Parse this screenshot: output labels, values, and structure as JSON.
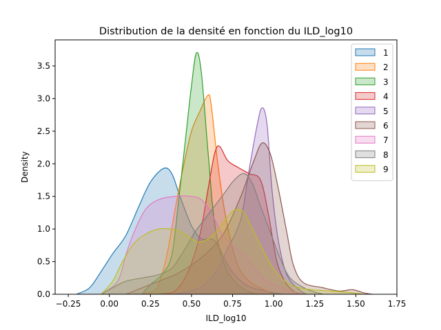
{
  "chart_data": {
    "type": "area",
    "title": "Distribution de la densité en fonction du ILD_log10",
    "xlabel": "ILD_log10",
    "ylabel": "Density",
    "xlim": [
      -0.33,
      1.75
    ],
    "ylim": [
      0,
      3.9
    ],
    "xticks": [
      "−0.25",
      "0.00",
      "0.25",
      "0.50",
      "0.75",
      "1.00",
      "1.25",
      "1.50",
      "1.75"
    ],
    "xtick_values": [
      -0.25,
      0,
      0.25,
      0.5,
      0.75,
      1.0,
      1.25,
      1.5,
      1.75
    ],
    "yticks": [
      "0.0",
      "0.5",
      "1.0",
      "1.5",
      "2.0",
      "2.5",
      "3.0",
      "3.5"
    ],
    "ytick_values": [
      0,
      0.5,
      1.0,
      1.5,
      2.0,
      2.5,
      3.0,
      3.5
    ],
    "legend_position": "top-right",
    "series": [
      {
        "name": "1",
        "color": "#1f77b4",
        "points": [
          [
            -0.2,
            0
          ],
          [
            -0.12,
            0.1
          ],
          [
            -0.05,
            0.35
          ],
          [
            0.02,
            0.62
          ],
          [
            0.1,
            0.9
          ],
          [
            0.18,
            1.35
          ],
          [
            0.25,
            1.72
          ],
          [
            0.33,
            1.93
          ],
          [
            0.38,
            1.85
          ],
          [
            0.43,
            1.5
          ],
          [
            0.5,
            1.05
          ],
          [
            0.56,
            0.85
          ],
          [
            0.62,
            0.85
          ],
          [
            0.66,
            0.75
          ],
          [
            0.72,
            0.45
          ],
          [
            0.78,
            0.25
          ],
          [
            0.85,
            0.12
          ],
          [
            0.95,
            0.05
          ],
          [
            1.05,
            0
          ]
        ]
      },
      {
        "name": "2",
        "color": "#ff7f0e",
        "points": [
          [
            0.2,
            0
          ],
          [
            0.27,
            0.05
          ],
          [
            0.3,
            0.15
          ],
          [
            0.35,
            0.6
          ],
          [
            0.4,
            1.3
          ],
          [
            0.45,
            1.95
          ],
          [
            0.5,
            2.5
          ],
          [
            0.55,
            2.8
          ],
          [
            0.6,
            3.05
          ],
          [
            0.62,
            2.9
          ],
          [
            0.66,
            2.0
          ],
          [
            0.7,
            1.3
          ],
          [
            0.75,
            0.7
          ],
          [
            0.8,
            0.35
          ],
          [
            0.88,
            0.15
          ],
          [
            1.0,
            0
          ]
        ]
      },
      {
        "name": "3",
        "color": "#2ca02c",
        "points": [
          [
            0.2,
            0
          ],
          [
            0.25,
            0.15
          ],
          [
            0.32,
            0.3
          ],
          [
            0.38,
            0.6
          ],
          [
            0.42,
            1.4
          ],
          [
            0.46,
            2.3
          ],
          [
            0.5,
            3.2
          ],
          [
            0.53,
            3.7
          ],
          [
            0.56,
            3.4
          ],
          [
            0.6,
            2.2
          ],
          [
            0.64,
            1.1
          ],
          [
            0.7,
            0.45
          ],
          [
            0.78,
            0.15
          ],
          [
            0.85,
            0.04
          ],
          [
            0.9,
            0
          ]
        ]
      },
      {
        "name": "4",
        "color": "#d62728",
        "points": [
          [
            0.3,
            0
          ],
          [
            0.4,
            0.05
          ],
          [
            0.48,
            0.35
          ],
          [
            0.55,
            0.9
          ],
          [
            0.6,
            1.6
          ],
          [
            0.64,
            2.15
          ],
          [
            0.67,
            2.27
          ],
          [
            0.72,
            2.05
          ],
          [
            0.78,
            1.95
          ],
          [
            0.85,
            1.85
          ],
          [
            0.92,
            1.75
          ],
          [
            0.97,
            1.2
          ],
          [
            1.02,
            0.5
          ],
          [
            1.08,
            0.15
          ],
          [
            1.15,
            0
          ]
        ]
      },
      {
        "name": "5",
        "color": "#9467bd",
        "points": [
          [
            0.4,
            0
          ],
          [
            0.55,
            0.1
          ],
          [
            0.65,
            0.35
          ],
          [
            0.72,
            0.7
          ],
          [
            0.8,
            1.15
          ],
          [
            0.85,
            1.9
          ],
          [
            0.9,
            2.6
          ],
          [
            0.93,
            2.86
          ],
          [
            0.96,
            2.6
          ],
          [
            0.99,
            1.6
          ],
          [
            1.03,
            0.8
          ],
          [
            1.08,
            0.3
          ],
          [
            1.15,
            0.08
          ],
          [
            1.2,
            0
          ]
        ]
      },
      {
        "name": "6",
        "color": "#8c564b",
        "points": [
          [
            0.1,
            0
          ],
          [
            0.2,
            0.1
          ],
          [
            0.3,
            0.2
          ],
          [
            0.4,
            0.3
          ],
          [
            0.5,
            0.45
          ],
          [
            0.6,
            0.65
          ],
          [
            0.7,
            0.95
          ],
          [
            0.8,
            1.5
          ],
          [
            0.88,
            2.05
          ],
          [
            0.93,
            2.32
          ],
          [
            0.98,
            2.15
          ],
          [
            1.03,
            1.6
          ],
          [
            1.08,
            0.95
          ],
          [
            1.12,
            0.45
          ],
          [
            1.18,
            0.18
          ],
          [
            1.3,
            0.1
          ],
          [
            1.4,
            0.05
          ],
          [
            1.48,
            0.07
          ],
          [
            1.55,
            0.02
          ],
          [
            1.6,
            0
          ]
        ]
      },
      {
        "name": "7",
        "color": "#e377c2",
        "points": [
          [
            -0.05,
            0
          ],
          [
            0.05,
            0.2
          ],
          [
            0.1,
            0.6
          ],
          [
            0.15,
            0.95
          ],
          [
            0.22,
            1.3
          ],
          [
            0.3,
            1.45
          ],
          [
            0.4,
            1.5
          ],
          [
            0.5,
            1.5
          ],
          [
            0.56,
            1.45
          ],
          [
            0.62,
            1.25
          ],
          [
            0.68,
            0.95
          ],
          [
            0.75,
            0.75
          ],
          [
            0.82,
            0.6
          ],
          [
            0.88,
            0.42
          ],
          [
            0.95,
            0.22
          ],
          [
            1.05,
            0.1
          ],
          [
            1.15,
            0.02
          ],
          [
            1.2,
            0
          ]
        ]
      },
      {
        "name": "8",
        "color": "#7f7f7f",
        "points": [
          [
            -0.05,
            0
          ],
          [
            0.02,
            0.1
          ],
          [
            0.1,
            0.2
          ],
          [
            0.2,
            0.25
          ],
          [
            0.3,
            0.3
          ],
          [
            0.38,
            0.4
          ],
          [
            0.45,
            0.65
          ],
          [
            0.52,
            0.95
          ],
          [
            0.58,
            1.15
          ],
          [
            0.64,
            1.35
          ],
          [
            0.7,
            1.55
          ],
          [
            0.76,
            1.75
          ],
          [
            0.82,
            1.85
          ],
          [
            0.87,
            1.7
          ],
          [
            0.92,
            1.35
          ],
          [
            0.98,
            0.95
          ],
          [
            1.04,
            0.55
          ],
          [
            1.1,
            0.25
          ],
          [
            1.2,
            0.08
          ],
          [
            1.3,
            0
          ]
        ]
      },
      {
        "name": "9",
        "color": "#bcbd22",
        "points": [
          [
            -0.05,
            0
          ],
          [
            0.02,
            0.2
          ],
          [
            0.08,
            0.5
          ],
          [
            0.15,
            0.78
          ],
          [
            0.22,
            0.92
          ],
          [
            0.3,
            1.0
          ],
          [
            0.38,
            1.0
          ],
          [
            0.44,
            0.95
          ],
          [
            0.5,
            0.85
          ],
          [
            0.55,
            0.8
          ],
          [
            0.62,
            0.88
          ],
          [
            0.68,
            1.05
          ],
          [
            0.74,
            1.25
          ],
          [
            0.78,
            1.3
          ],
          [
            0.82,
            1.25
          ],
          [
            0.88,
            0.95
          ],
          [
            0.95,
            0.6
          ],
          [
            1.02,
            0.32
          ],
          [
            1.1,
            0.15
          ],
          [
            1.2,
            0.08
          ],
          [
            1.35,
            0.05
          ],
          [
            1.45,
            0.03
          ],
          [
            1.55,
            0
          ]
        ]
      }
    ]
  }
}
